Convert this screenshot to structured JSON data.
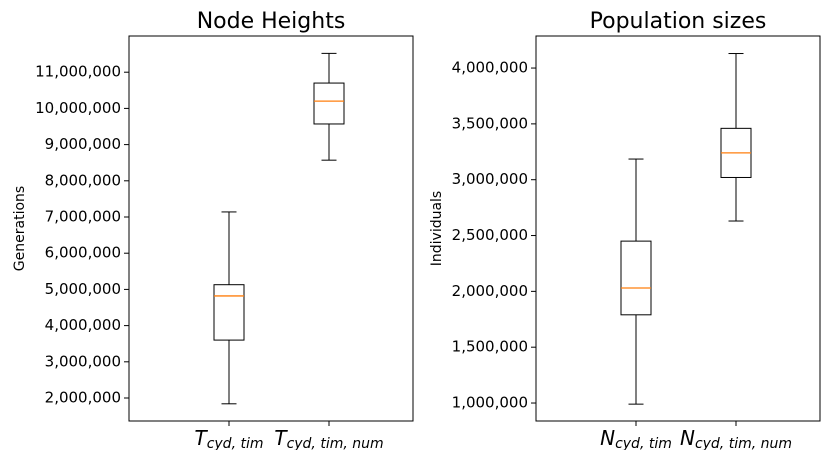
{
  "chart_data": [
    {
      "type": "box",
      "title": "Node Heights",
      "ylabel": "Generations",
      "categories": [
        {
          "main": "T",
          "sub": "cyd, tim"
        },
        {
          "main": "T",
          "sub": "cyd, tim, num"
        }
      ],
      "boxes": [
        {
          "whislo": 1840000,
          "q1": 3600000,
          "med": 4820000,
          "q3": 5130000,
          "whishi": 7140000
        },
        {
          "whislo": 8570000,
          "q1": 9570000,
          "med": 10200000,
          "q3": 10700000,
          "whishi": 11520000
        }
      ],
      "box_color": "#000000",
      "median_color": "#ff7f0e",
      "ylim": [
        1365000,
        12000000
      ],
      "yticks": [
        {
          "value": 2000000,
          "label": "2,000,000"
        },
        {
          "value": 3000000,
          "label": "3,000,000"
        },
        {
          "value": 4000000,
          "label": "4,000,000"
        },
        {
          "value": 5000000,
          "label": "5,000,000"
        },
        {
          "value": 6000000,
          "label": "6,000,000"
        },
        {
          "value": 7000000,
          "label": "7,000,000"
        },
        {
          "value": 8000000,
          "label": "8,000,000"
        },
        {
          "value": 9000000,
          "label": "9,000,000"
        },
        {
          "value": 10000000,
          "label": "10,000,000"
        },
        {
          "value": 11000000,
          "label": "11,000,000"
        }
      ]
    },
    {
      "type": "box",
      "title": "Population sizes",
      "ylabel": "Individuals",
      "categories": [
        {
          "main": "N",
          "sub": "cyd, tim"
        },
        {
          "main": "N",
          "sub": "cyd, tim, num"
        }
      ],
      "boxes": [
        {
          "whislo": 990000,
          "q1": 1790000,
          "med": 2030000,
          "q3": 2450000,
          "whishi": 3185000
        },
        {
          "whislo": 2630000,
          "q1": 3020000,
          "med": 3240000,
          "q3": 3460000,
          "whishi": 4130000
        }
      ],
      "box_color": "#000000",
      "median_color": "#ff7f0e",
      "ylim": [
        839000,
        4287000
      ],
      "yticks": [
        {
          "value": 1000000,
          "label": "1,000,000"
        },
        {
          "value": 1500000,
          "label": "1,500,000"
        },
        {
          "value": 2000000,
          "label": "2,000,000"
        },
        {
          "value": 2500000,
          "label": "2,500,000"
        },
        {
          "value": 3000000,
          "label": "3,000,000"
        },
        {
          "value": 3500000,
          "label": "3,500,000"
        },
        {
          "value": 4000000,
          "label": "4,000,000"
        }
      ]
    }
  ]
}
